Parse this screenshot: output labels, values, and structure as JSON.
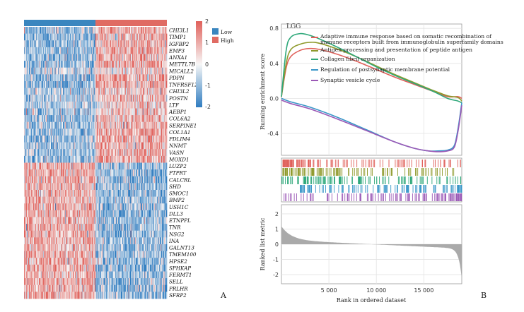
{
  "chart_data": [
    {
      "type": "heatmap",
      "panel_label": "A",
      "group_label_low": "Low",
      "group_label_high": "High",
      "group_colors": {
        "low": "#3a86bf",
        "high": "#e06b63"
      },
      "color_scale": {
        "min": -2,
        "max": 2,
        "ticks": [
          "2",
          "1",
          "0",
          "-1",
          "-2"
        ],
        "low_color": "#2f7cc0",
        "mid_color": "#f7f7f7",
        "high_color": "#e0605a"
      },
      "n_samples_low": 130,
      "n_samples_high": 130,
      "genes": [
        "CHI3L1",
        "TIMP1",
        "IGFBP2",
        "EMP3",
        "ANXA1",
        "METTL7B",
        "MICALL2",
        "PDPN",
        "TNFRSF12A",
        "CHI3L2",
        "POSTN",
        "LTF",
        "AEBP1",
        "COL6A2",
        "SERPINE1",
        "COL1A1",
        "PDLIM4",
        "NNMT",
        "VASN",
        "MOXD1",
        "LUZP2",
        "PTPRT",
        "CALCRL",
        "SHD",
        "SMOC1",
        "BMP2",
        "USH1C",
        "DLL3",
        "ETNPPL",
        "TNR",
        "NSG2",
        "INA",
        "GALNT13",
        "TMEM100",
        "HPSE2",
        "SPHKAP",
        "FERMT1",
        "SELL",
        "PRLHR",
        "SFRP2"
      ],
      "pattern": "first 20 genes low in Low group / high in High group; last 20 genes high in Low group / low in High group"
    },
    {
      "type": "line",
      "panel_label": "B",
      "title": "LGG",
      "ylabel": "Running enrichment score",
      "ylim": [
        -0.65,
        0.85
      ],
      "yticks": [
        -0.4,
        0.0,
        0.4,
        0.8
      ],
      "ytick_labels": [
        "-0.4",
        "0.0",
        "0.4",
        "0.8"
      ],
      "xlim": [
        0,
        19000
      ],
      "series": [
        {
          "name": "Adaptive immune response based on somatic recombination of immune receptors built from immunoglobulin superfamily domains",
          "color": "#e0605a",
          "x": [
            0,
            500,
            1000,
            2000,
            3000,
            4000,
            6000,
            8000,
            10000,
            12000,
            14000,
            16000,
            17500,
            18600,
            19000
          ],
          "y": [
            0.02,
            0.35,
            0.48,
            0.55,
            0.57,
            0.56,
            0.5,
            0.42,
            0.33,
            0.24,
            0.16,
            0.08,
            0.02,
            0.02,
            0.0
          ]
        },
        {
          "name": "Antigen processing and presentation of peptide antigen",
          "color": "#8f9a2c",
          "x": [
            0,
            500,
            1000,
            2000,
            3000,
            4000,
            6000,
            8000,
            10000,
            12000,
            14000,
            16000,
            17500,
            18600,
            19000
          ],
          "y": [
            0.02,
            0.4,
            0.56,
            0.62,
            0.64,
            0.63,
            0.56,
            0.47,
            0.37,
            0.27,
            0.18,
            0.09,
            0.03,
            0.01,
            -0.03
          ]
        },
        {
          "name": "Collagen fibril organization",
          "color": "#2ea87a",
          "x": [
            0,
            500,
            1000,
            2000,
            3000,
            4000,
            6000,
            8000,
            10000,
            12000,
            14000,
            16000,
            17500,
            18600,
            19000
          ],
          "y": [
            0.02,
            0.55,
            0.7,
            0.74,
            0.72,
            0.68,
            0.58,
            0.47,
            0.36,
            0.26,
            0.17,
            0.08,
            0.0,
            -0.03,
            -0.05
          ]
        },
        {
          "name": "Regulation of postsynaptic membrane potential",
          "color": "#3a97c8",
          "x": [
            0,
            1000,
            3000,
            6000,
            9000,
            12000,
            14000,
            15500,
            16500,
            17500,
            18200,
            18600,
            19000
          ],
          "y": [
            0.0,
            -0.04,
            -0.1,
            -0.22,
            -0.36,
            -0.5,
            -0.57,
            -0.6,
            -0.6,
            -0.59,
            -0.54,
            -0.35,
            -0.05
          ]
        },
        {
          "name": "Synaptic vesicle cycle",
          "color": "#9b59b6",
          "x": [
            0,
            1000,
            3000,
            6000,
            9000,
            12000,
            14000,
            15500,
            16500,
            17500,
            18200,
            18600,
            19000
          ],
          "y": [
            -0.02,
            -0.06,
            -0.12,
            -0.24,
            -0.37,
            -0.5,
            -0.57,
            -0.6,
            -0.61,
            -0.6,
            -0.56,
            -0.38,
            -0.08
          ]
        }
      ],
      "ranked_metric": {
        "ylabel": "Ranked list metric",
        "xlabel": "Rank in ordered dataset",
        "ylim": [
          -2.6,
          2.6
        ],
        "yticks": [
          2,
          1,
          0,
          -1,
          -2
        ],
        "ytick_labels": [
          "2",
          "1",
          "0",
          "-1",
          "-2"
        ],
        "xticks": [
          5000,
          10000,
          15000
        ],
        "xtick_labels": [
          "5 000",
          "10 000",
          "15 000"
        ],
        "fill_color": "#aaaaaa"
      }
    }
  ]
}
